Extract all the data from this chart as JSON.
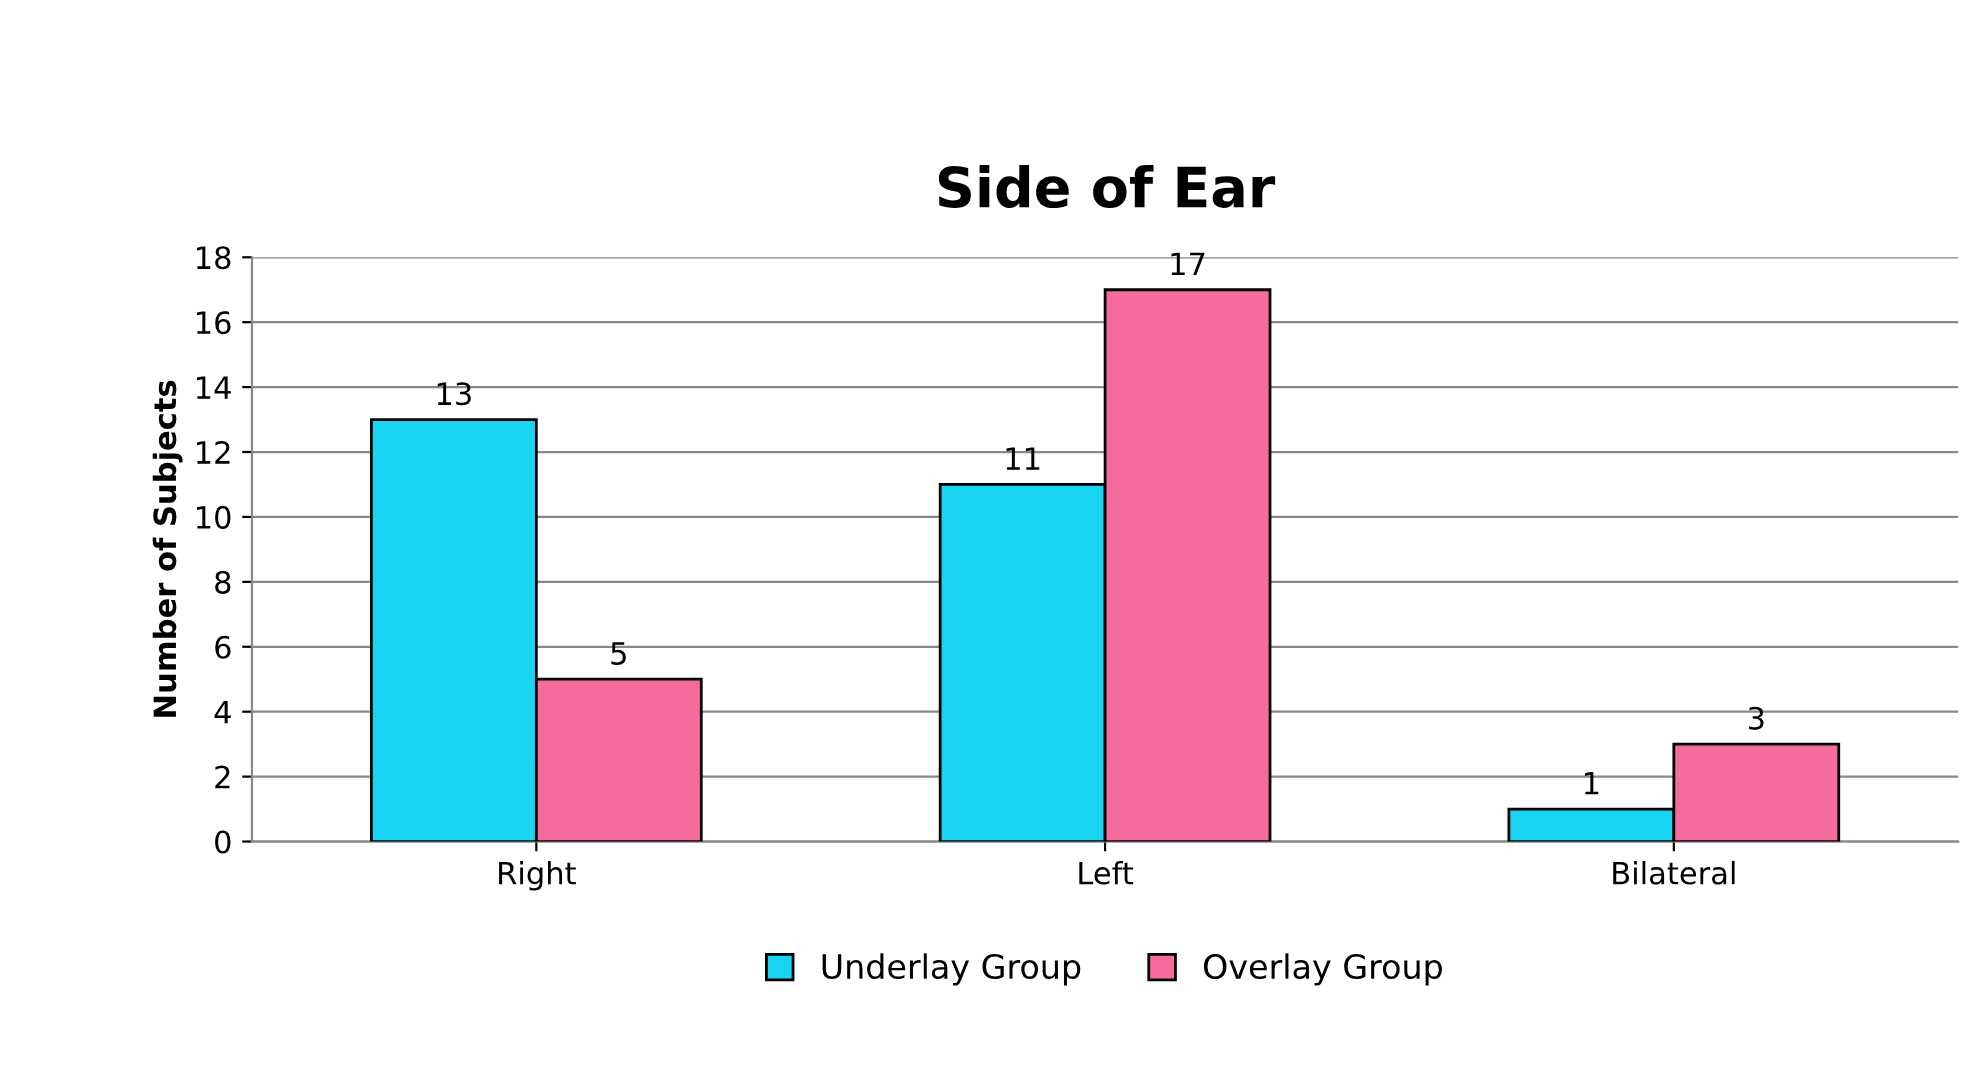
{
  "chart_data": {
    "type": "bar",
    "title": "Side of Ear",
    "ylabel": "Number of Subjects",
    "categories": [
      "Right",
      "Left",
      "Bilateral"
    ],
    "series": [
      {
        "name": "Underlay Group",
        "color": "#19d3f3",
        "values": [
          13,
          11,
          1
        ]
      },
      {
        "name": "Overlay Group",
        "color": "#f56b9e",
        "values": [
          5,
          17,
          3
        ]
      }
    ],
    "ylim": [
      0,
      18
    ],
    "yticks": [
      0,
      2,
      4,
      6,
      8,
      10,
      12,
      14,
      16,
      18
    ],
    "grid": "y",
    "legend": "bottom",
    "data_labels": true
  }
}
